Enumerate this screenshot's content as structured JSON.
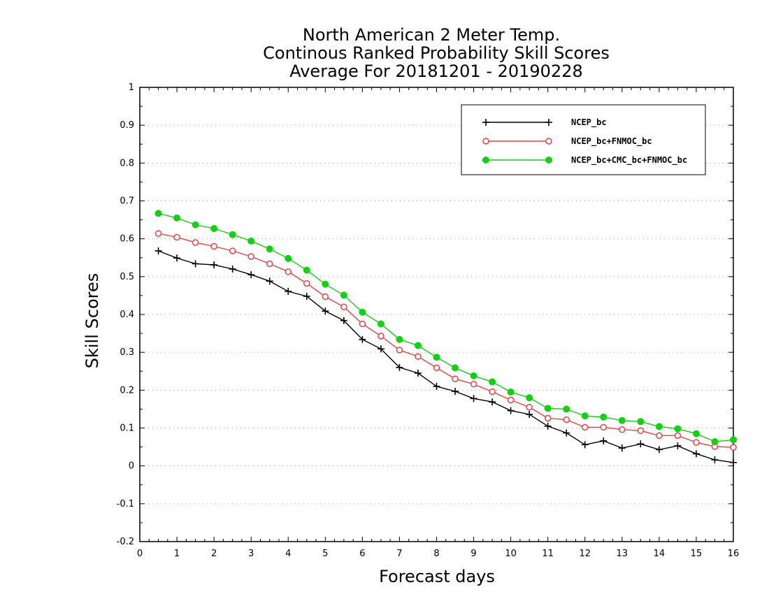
{
  "chart_data": {
    "type": "line",
    "title": [
      "North American 2 Meter Temp.",
      "Continous Ranked Probability Skill Scores",
      "Average For 20181201 - 20190228"
    ],
    "xlabel": "Forecast days",
    "ylabel": "Skill Scores",
    "xlim": [
      0,
      16
    ],
    "ylim": [
      -0.2,
      1
    ],
    "xticks": [
      "0",
      "1",
      "2",
      "3",
      "4",
      "5",
      "6",
      "7",
      "8",
      "9",
      "10",
      "11",
      "12",
      "13",
      "14",
      "15",
      "16"
    ],
    "yticks": [
      "-0.2",
      "-0.1",
      "0",
      "0.1",
      "0.2",
      "0.3",
      "0.4",
      "0.5",
      "0.6",
      "0.7",
      "0.8",
      "0.9",
      "1"
    ],
    "grid": "horizontal dotted",
    "legend_position": "top-right",
    "x": [
      0.5,
      1,
      1.5,
      2,
      2.5,
      3,
      3.5,
      4,
      4.5,
      5,
      5.5,
      6,
      6.5,
      7,
      7.5,
      8,
      8.5,
      9,
      9.5,
      10,
      10.5,
      11,
      11.5,
      12,
      12.5,
      13,
      13.5,
      14,
      14.5,
      15,
      15.5,
      16
    ],
    "series": [
      {
        "name": "NCEP_bc",
        "color": "#000000",
        "marker": "plus",
        "values": [
          0.568,
          0.549,
          0.534,
          0.531,
          0.52,
          0.505,
          0.488,
          0.461,
          0.448,
          0.409,
          0.384,
          0.334,
          0.309,
          0.26,
          0.245,
          0.21,
          0.197,
          0.178,
          0.169,
          0.146,
          0.136,
          0.105,
          0.087,
          0.056,
          0.066,
          0.047,
          0.058,
          0.043,
          0.053,
          0.032,
          0.016,
          0.009
        ]
      },
      {
        "name": "NCEP_bc+FNMOC_bc",
        "color": "#e8413f",
        "marker": "open-circle",
        "values": [
          0.614,
          0.604,
          0.59,
          0.58,
          0.568,
          0.553,
          0.534,
          0.513,
          0.482,
          0.447,
          0.42,
          0.375,
          0.343,
          0.306,
          0.289,
          0.259,
          0.23,
          0.216,
          0.196,
          0.174,
          0.155,
          0.126,
          0.122,
          0.102,
          0.102,
          0.096,
          0.093,
          0.08,
          0.08,
          0.062,
          0.051,
          0.049
        ]
      },
      {
        "name": "NCEP_bc+CMC_bc+FNMOC_bc",
        "color": "#12d012",
        "marker": "filled-circle",
        "values": [
          0.667,
          0.655,
          0.637,
          0.627,
          0.611,
          0.594,
          0.573,
          0.548,
          0.517,
          0.48,
          0.451,
          0.406,
          0.375,
          0.334,
          0.318,
          0.287,
          0.259,
          0.238,
          0.222,
          0.195,
          0.18,
          0.152,
          0.15,
          0.132,
          0.129,
          0.12,
          0.117,
          0.104,
          0.098,
          0.085,
          0.064,
          0.069
        ]
      }
    ]
  }
}
